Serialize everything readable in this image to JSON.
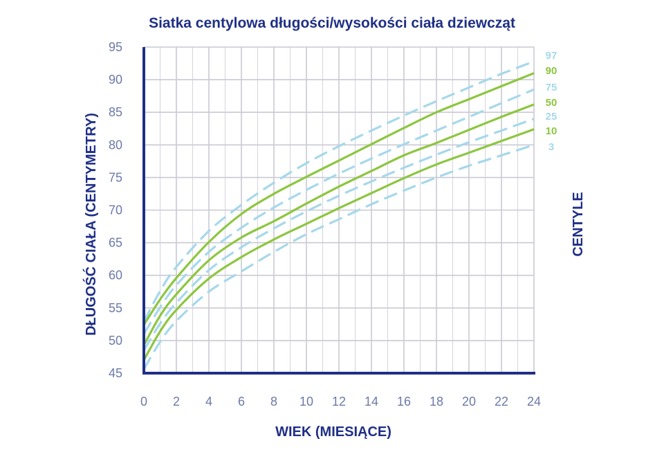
{
  "chart_data": {
    "type": "line",
    "title": "Siatka centylowa długości/wysokości ciała dziewcząt",
    "xlabel": "WIEK (MIESIĄCE)",
    "ylabel": "DŁUGOŚĆ CIAŁA (CENTYMETRY)",
    "legend_title": "CENTYLE",
    "legend_placement": "right",
    "xlim": [
      0,
      24
    ],
    "ylim": [
      45,
      95
    ],
    "x_ticks": [
      0,
      2,
      4,
      6,
      8,
      10,
      12,
      14,
      16,
      18,
      20,
      22,
      24
    ],
    "y_ticks": [
      45,
      50,
      55,
      60,
      65,
      70,
      75,
      80,
      85,
      90,
      95
    ],
    "grid": true,
    "x": [
      0,
      1,
      2,
      4,
      6,
      8,
      10,
      12,
      14,
      16,
      18,
      20,
      22,
      24
    ],
    "series": [
      {
        "name": "97",
        "style": "dashed",
        "color": "#a6d8ea",
        "values": [
          52.9,
          57.6,
          61.3,
          66.8,
          70.8,
          74.2,
          77.2,
          79.8,
          82.2,
          84.5,
          86.7,
          88.8,
          90.9,
          92.8
        ]
      },
      {
        "name": "90",
        "style": "solid",
        "color": "#8dc63f",
        "values": [
          52.4,
          56.3,
          59.6,
          65.1,
          69.4,
          72.5,
          75.1,
          77.6,
          80.1,
          82.6,
          85.0,
          87.0,
          89.0,
          91.0
        ]
      },
      {
        "name": "75",
        "style": "dashed",
        "color": "#a6d8ea",
        "values": [
          51.0,
          55.1,
          58.5,
          63.6,
          67.3,
          70.4,
          73.1,
          75.6,
          77.9,
          80.1,
          82.2,
          84.3,
          86.4,
          88.5
        ]
      },
      {
        "name": "50",
        "style": "solid",
        "color": "#8dc63f",
        "values": [
          49.3,
          53.8,
          57.1,
          62.3,
          65.8,
          68.3,
          71.0,
          73.6,
          76.0,
          78.4,
          80.3,
          82.3,
          84.3,
          86.2
        ]
      },
      {
        "name": "25",
        "style": "dashed",
        "color": "#a6d8ea",
        "values": [
          48.5,
          52.6,
          55.8,
          60.8,
          64.3,
          67.2,
          69.8,
          72.2,
          74.4,
          76.5,
          78.5,
          80.4,
          82.2,
          84.0
        ]
      },
      {
        "name": "10",
        "style": "solid",
        "color": "#8dc63f",
        "values": [
          47.0,
          51.4,
          54.7,
          59.5,
          62.8,
          65.5,
          67.9,
          70.3,
          72.6,
          74.9,
          77.0,
          78.8,
          80.6,
          82.4
        ]
      },
      {
        "name": "3",
        "style": "dashed",
        "color": "#a6d8ea",
        "values": [
          45.6,
          49.8,
          53.0,
          57.5,
          60.6,
          63.6,
          66.3,
          68.6,
          70.9,
          73.0,
          75.0,
          76.8,
          78.4,
          80.0
        ]
      }
    ],
    "colors": {
      "axis": "#1f2f86",
      "grid": "#c9cad3",
      "title": "#1f2f86",
      "ticks": "#6c79aa",
      "dashed": "#a6d8ea",
      "solid": "#8dc63f"
    }
  }
}
